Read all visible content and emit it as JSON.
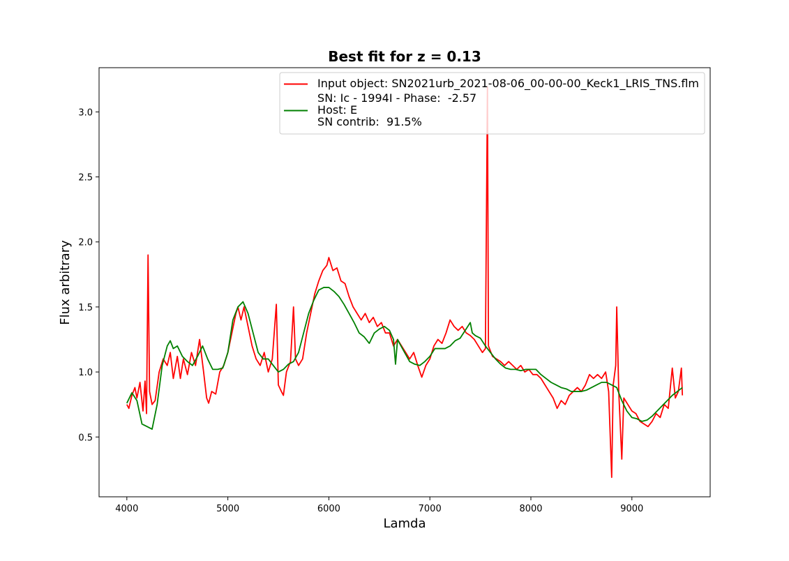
{
  "chart_data": {
    "type": "line",
    "title": "Best fit for z = 0.13",
    "x_label": "Lamda",
    "y_label": "Flux arbitrary",
    "xlim": [
      3725,
      9775
    ],
    "ylim": [
      0.04,
      3.34
    ],
    "xticks": [
      4000,
      5000,
      6000,
      7000,
      8000,
      9000
    ],
    "yticks": [
      0.5,
      {
        "value": 1,
        "label": "1.0"
      },
      1.5,
      {
        "value": 2,
        "label": "2.0"
      },
      2.5,
      {
        "value": 3,
        "label": "3.0"
      }
    ],
    "grid": false,
    "legend": "upper right",
    "series": [
      {
        "name": [
          "Input object: SN2021urb_2021-08-06_00-00-00_Keck1_LRIS_TNS.flm"
        ],
        "color": "#ff0000",
        "x": [
          4000,
          4020,
          4050,
          4080,
          4100,
          4130,
          4160,
          4180,
          4195,
          4210,
          4225,
          4250,
          4280,
          4320,
          4360,
          4400,
          4430,
          4460,
          4500,
          4530,
          4560,
          4600,
          4640,
          4680,
          4720,
          4760,
          4790,
          4810,
          4840,
          4880,
          4920,
          4960,
          5000,
          5040,
          5080,
          5100,
          5130,
          5160,
          5200,
          5240,
          5280,
          5320,
          5360,
          5400,
          5440,
          5480,
          5500,
          5530,
          5550,
          5580,
          5620,
          5650,
          5670,
          5700,
          5740,
          5780,
          5820,
          5860,
          5900,
          5940,
          5980,
          6000,
          6040,
          6080,
          6120,
          6160,
          6200,
          6240,
          6280,
          6320,
          6360,
          6400,
          6440,
          6480,
          6520,
          6560,
          6600,
          6640,
          6680,
          6720,
          6760,
          6800,
          6840,
          6880,
          6920,
          6960,
          7000,
          7040,
          7080,
          7120,
          7160,
          7200,
          7240,
          7280,
          7320,
          7360,
          7400,
          7440,
          7480,
          7520,
          7550,
          7570,
          7580,
          7620,
          7660,
          7700,
          7740,
          7780,
          7820,
          7860,
          7900,
          7940,
          7980,
          8020,
          8060,
          8100,
          8140,
          8180,
          8220,
          8260,
          8300,
          8340,
          8380,
          8420,
          8460,
          8500,
          8540,
          8580,
          8620,
          8660,
          8700,
          8740,
          8770,
          8800,
          8815,
          8840,
          8850,
          8870,
          8900,
          8920,
          8960,
          9000,
          9040,
          9080,
          9120,
          9160,
          9200,
          9240,
          9280,
          9320,
          9360,
          9400,
          9430,
          9460,
          9490,
          9500
        ],
        "values": [
          0.75,
          0.72,
          0.82,
          0.88,
          0.8,
          0.92,
          0.7,
          0.93,
          0.68,
          1.9,
          0.85,
          0.75,
          0.78,
          1.0,
          1.1,
          1.05,
          1.15,
          0.95,
          1.12,
          0.95,
          1.1,
          0.98,
          1.15,
          1.05,
          1.25,
          1.0,
          0.8,
          0.76,
          0.85,
          0.83,
          1.0,
          1.05,
          1.15,
          1.3,
          1.45,
          1.5,
          1.4,
          1.5,
          1.35,
          1.2,
          1.1,
          1.05,
          1.15,
          1.0,
          1.1,
          1.52,
          0.9,
          0.85,
          0.82,
          1.0,
          1.08,
          1.5,
          1.1,
          1.05,
          1.1,
          1.3,
          1.45,
          1.6,
          1.7,
          1.78,
          1.82,
          1.88,
          1.78,
          1.8,
          1.7,
          1.68,
          1.58,
          1.5,
          1.45,
          1.4,
          1.45,
          1.38,
          1.42,
          1.35,
          1.38,
          1.3,
          1.3,
          1.2,
          1.25,
          1.2,
          1.15,
          1.1,
          1.15,
          1.05,
          0.96,
          1.05,
          1.1,
          1.2,
          1.25,
          1.22,
          1.3,
          1.4,
          1.35,
          1.32,
          1.35,
          1.3,
          1.28,
          1.25,
          1.2,
          1.15,
          1.18,
          3.19,
          1.2,
          1.12,
          1.1,
          1.08,
          1.05,
          1.08,
          1.05,
          1.02,
          1.05,
          1.0,
          1.02,
          0.98,
          0.98,
          0.95,
          0.9,
          0.85,
          0.8,
          0.72,
          0.78,
          0.75,
          0.82,
          0.85,
          0.88,
          0.85,
          0.9,
          0.98,
          0.95,
          0.98,
          0.95,
          1.0,
          0.85,
          0.19,
          0.9,
          1.05,
          1.5,
          0.85,
          0.33,
          0.8,
          0.75,
          0.7,
          0.68,
          0.62,
          0.6,
          0.58,
          0.62,
          0.68,
          0.65,
          0.75,
          0.72,
          1.03,
          0.8,
          0.85,
          1.03,
          0.82
        ]
      },
      {
        "name": [
          "SN: Ic - 1994I - Phase:  -2.57",
          "Host: E",
          "SN contrib:  91.5%"
        ],
        "color": "#008000",
        "x": [
          4000,
          4050,
          4100,
          4150,
          4200,
          4250,
          4300,
          4350,
          4400,
          4430,
          4460,
          4500,
          4550,
          4600,
          4650,
          4700,
          4750,
          4800,
          4850,
          4900,
          4950,
          5000,
          5050,
          5100,
          5150,
          5200,
          5250,
          5300,
          5350,
          5400,
          5450,
          5500,
          5550,
          5600,
          5650,
          5700,
          5750,
          5800,
          5850,
          5900,
          5950,
          6000,
          6050,
          6100,
          6150,
          6200,
          6250,
          6300,
          6350,
          6400,
          6450,
          6500,
          6550,
          6600,
          6640,
          6660,
          6680,
          6700,
          6750,
          6800,
          6850,
          6900,
          6950,
          7000,
          7050,
          7100,
          7150,
          7200,
          7250,
          7300,
          7350,
          7400,
          7420,
          7450,
          7500,
          7550,
          7600,
          7650,
          7700,
          7750,
          7800,
          7850,
          7900,
          7950,
          8000,
          8050,
          8100,
          8150,
          8200,
          8250,
          8300,
          8350,
          8400,
          8450,
          8500,
          8550,
          8600,
          8650,
          8700,
          8750,
          8800,
          8850,
          8900,
          8950,
          9000,
          9050,
          9100,
          9150,
          9200,
          9250,
          9300,
          9350,
          9400,
          9450,
          9500
        ],
        "values": [
          0.76,
          0.84,
          0.78,
          0.6,
          0.58,
          0.56,
          0.75,
          1.05,
          1.2,
          1.24,
          1.18,
          1.2,
          1.12,
          1.08,
          1.05,
          1.12,
          1.2,
          1.1,
          1.02,
          1.02,
          1.03,
          1.15,
          1.4,
          1.5,
          1.54,
          1.45,
          1.3,
          1.15,
          1.1,
          1.1,
          1.05,
          1.0,
          1.02,
          1.06,
          1.08,
          1.15,
          1.3,
          1.45,
          1.55,
          1.63,
          1.65,
          1.65,
          1.62,
          1.58,
          1.52,
          1.45,
          1.38,
          1.3,
          1.27,
          1.22,
          1.3,
          1.33,
          1.35,
          1.32,
          1.25,
          1.06,
          1.25,
          1.22,
          1.15,
          1.08,
          1.06,
          1.05,
          1.08,
          1.12,
          1.18,
          1.18,
          1.18,
          1.2,
          1.24,
          1.26,
          1.32,
          1.38,
          1.3,
          1.28,
          1.26,
          1.2,
          1.15,
          1.1,
          1.06,
          1.03,
          1.02,
          1.02,
          1.01,
          1.02,
          1.02,
          1.02,
          0.98,
          0.95,
          0.92,
          0.9,
          0.88,
          0.87,
          0.85,
          0.85,
          0.85,
          0.86,
          0.88,
          0.9,
          0.92,
          0.92,
          0.9,
          0.88,
          0.78,
          0.7,
          0.65,
          0.64,
          0.62,
          0.63,
          0.66,
          0.7,
          0.74,
          0.78,
          0.82,
          0.85,
          0.88
        ]
      }
    ]
  }
}
